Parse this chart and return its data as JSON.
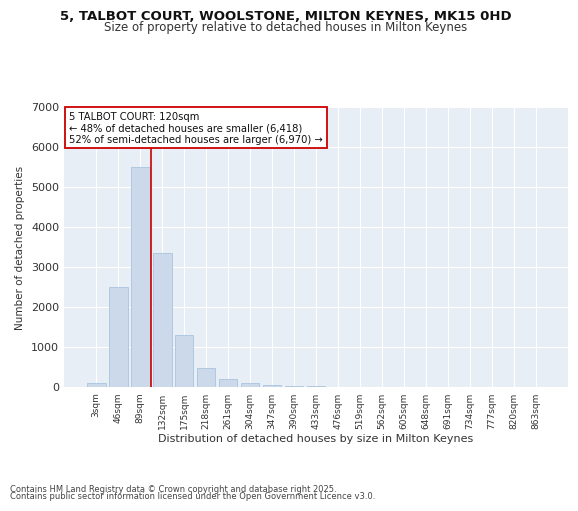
{
  "title_line1": "5, TALBOT COURT, WOOLSTONE, MILTON KEYNES, MK15 0HD",
  "title_line2": "Size of property relative to detached houses in Milton Keynes",
  "xlabel": "Distribution of detached houses by size in Milton Keynes",
  "ylabel": "Number of detached properties",
  "bar_color": "#ccd9ea",
  "bar_edge_color": "#aac4de",
  "background_color": "#e8eef5",
  "grid_color": "#ffffff",
  "vline_color": "#cc0000",
  "annotation_text": "5 TALBOT COURT: 120sqm\n← 48% of detached houses are smaller (6,418)\n52% of semi-detached houses are larger (6,970) →",
  "annotation_box_color": "#ffffff",
  "annotation_box_edge": "#cc0000",
  "footnote_line1": "Contains HM Land Registry data © Crown copyright and database right 2025.",
  "footnote_line2": "Contains public sector information licensed under the Open Government Licence v3.0.",
  "categories": [
    "3sqm",
    "46sqm",
    "89sqm",
    "132sqm",
    "175sqm",
    "218sqm",
    "261sqm",
    "304sqm",
    "347sqm",
    "390sqm",
    "433sqm",
    "476sqm",
    "519sqm",
    "562sqm",
    "605sqm",
    "648sqm",
    "691sqm",
    "734sqm",
    "777sqm",
    "820sqm",
    "863sqm"
  ],
  "values": [
    100,
    2500,
    5500,
    3350,
    1300,
    480,
    210,
    100,
    55,
    30,
    15,
    10,
    5,
    3,
    2,
    1,
    1,
    1,
    0,
    0,
    0
  ],
  "ylim": [
    0,
    7000
  ],
  "yticks": [
    0,
    1000,
    2000,
    3000,
    4000,
    5000,
    6000,
    7000
  ],
  "vline_bin": 2
}
